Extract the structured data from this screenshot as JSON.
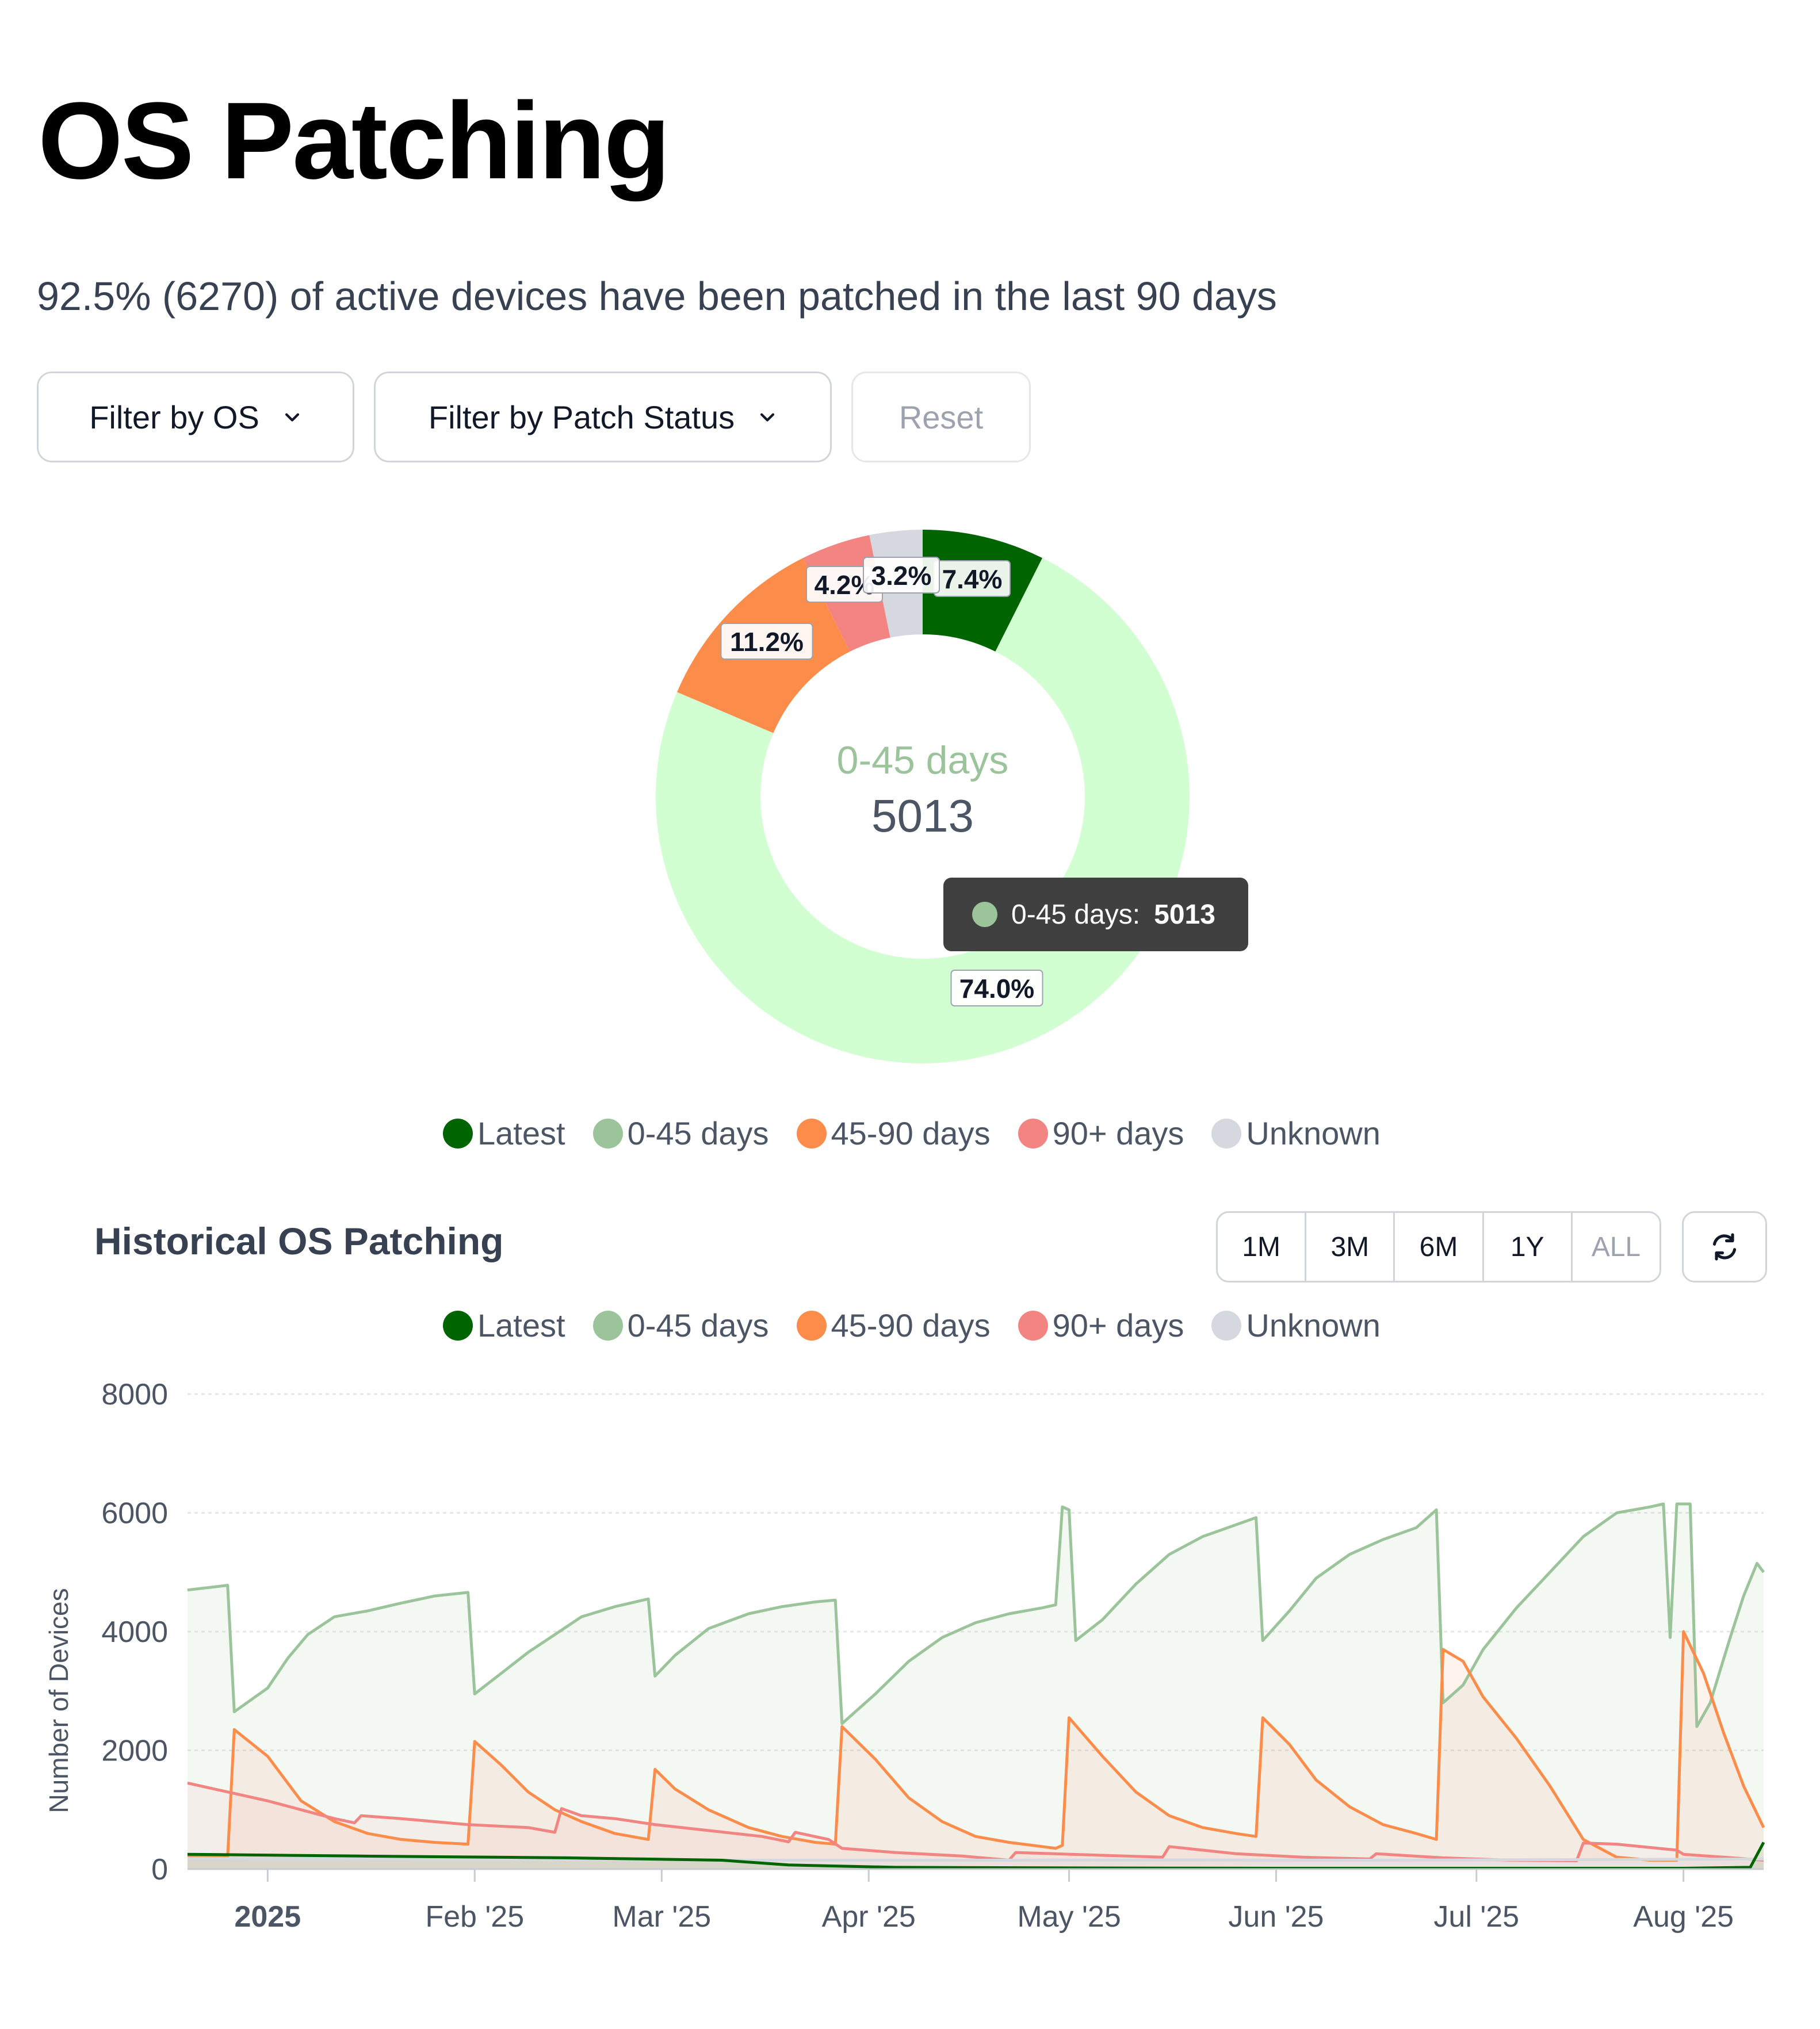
{
  "page": {
    "title": "OS Patching",
    "summary": "92.5% (6270) of active devices have been patched in the last 90 days"
  },
  "filters": {
    "os_label": "Filter by OS",
    "status_label": "Filter by Patch Status",
    "reset_label": "Reset"
  },
  "icons": {
    "dropdown": "chevron-down-icon",
    "refresh": "refresh-icon"
  },
  "colors": {
    "latest": "#006400",
    "days_0_45": "#9bc49b",
    "days_0_45_slice": "#d2ffd2",
    "days_45_90": "#fb8c4a",
    "days_90_plus": "#f28482",
    "unknown": "#d5d8de"
  },
  "legend": [
    {
      "key": "latest",
      "label": "Latest"
    },
    {
      "key": "days_0_45",
      "label": "0-45 days"
    },
    {
      "key": "days_45_90",
      "label": "45-90 days"
    },
    {
      "key": "days_90_plus",
      "label": "90+ days"
    },
    {
      "key": "unknown",
      "label": "Unknown"
    }
  ],
  "donut": {
    "center_label": "0-45 days",
    "center_value": "5013",
    "tooltip": {
      "label": "0-45 days:",
      "value": "5013"
    }
  },
  "history": {
    "title": "Historical OS Patching",
    "ranges": [
      "1M",
      "3M",
      "6M",
      "1Y",
      "ALL"
    ],
    "active_range": "ALL"
  },
  "chart_data": [
    {
      "type": "pie",
      "variant": "donut",
      "slices": [
        {
          "label": "Latest",
          "percent": 7.4,
          "label_text": "7.4%"
        },
        {
          "label": "0-45 days",
          "percent": 74.0,
          "value": 5013,
          "label_text": "74.0%"
        },
        {
          "label": "45-90 days",
          "percent": 11.2,
          "label_text": "11.2%"
        },
        {
          "label": "90+ days",
          "percent": 4.2,
          "label_text": "4.2%"
        },
        {
          "label": "Unknown",
          "percent": 3.2,
          "label_text": "3.2%"
        }
      ]
    },
    {
      "type": "area",
      "ylabel": "Number of Devices",
      "ylim": [
        0,
        8000
      ],
      "yticks": [
        0,
        2000,
        4000,
        6000,
        8000
      ],
      "xlim": [
        "2024-12-20",
        "2025-08-13"
      ],
      "xticks": [
        {
          "date": "2025-01-01",
          "label": "2025",
          "bold": true
        },
        {
          "date": "2025-02-01",
          "label": "Feb '25"
        },
        {
          "date": "2025-03-01",
          "label": "Mar '25"
        },
        {
          "date": "2025-04-01",
          "label": "Apr '25"
        },
        {
          "date": "2025-05-01",
          "label": "May '25"
        },
        {
          "date": "2025-06-01",
          "label": "Jun '25"
        },
        {
          "date": "2025-07-01",
          "label": "Jul '25"
        },
        {
          "date": "2025-08-01",
          "label": "Aug '25"
        }
      ],
      "grid": true,
      "legend_position": "top",
      "series": [
        {
          "key": "days_0_45",
          "name": "0-45 days",
          "points": [
            [
              "2024-12-20",
              4700
            ],
            [
              "2024-12-26",
              4780
            ],
            [
              "2024-12-27",
              2650
            ],
            [
              "2025-01-01",
              3050
            ],
            [
              "2025-01-04",
              3550
            ],
            [
              "2025-01-07",
              3950
            ],
            [
              "2025-01-11",
              4250
            ],
            [
              "2025-01-16",
              4350
            ],
            [
              "2025-01-21",
              4480
            ],
            [
              "2025-01-26",
              4600
            ],
            [
              "2025-01-31",
              4660
            ],
            [
              "2025-02-01",
              2950
            ],
            [
              "2025-02-05",
              3300
            ],
            [
              "2025-02-09",
              3650
            ],
            [
              "2025-02-13",
              3950
            ],
            [
              "2025-02-17",
              4250
            ],
            [
              "2025-02-22",
              4420
            ],
            [
              "2025-02-27",
              4550
            ],
            [
              "2025-02-28",
              3250
            ],
            [
              "2025-03-03",
              3600
            ],
            [
              "2025-03-08",
              4050
            ],
            [
              "2025-03-14",
              4300
            ],
            [
              "2025-03-19",
              4420
            ],
            [
              "2025-03-24",
              4500
            ],
            [
              "2025-03-27",
              4530
            ],
            [
              "2025-03-28",
              2450
            ],
            [
              "2025-04-02",
              2950
            ],
            [
              "2025-04-07",
              3500
            ],
            [
              "2025-04-12",
              3900
            ],
            [
              "2025-04-17",
              4150
            ],
            [
              "2025-04-22",
              4300
            ],
            [
              "2025-04-27",
              4400
            ],
            [
              "2025-04-29",
              4450
            ],
            [
              "2025-04-30",
              6100
            ],
            [
              "2025-05-01",
              6050
            ],
            [
              "2025-05-02",
              3850
            ],
            [
              "2025-05-06",
              4200
            ],
            [
              "2025-05-11",
              4800
            ],
            [
              "2025-05-16",
              5300
            ],
            [
              "2025-05-21",
              5600
            ],
            [
              "2025-05-26",
              5800
            ],
            [
              "2025-05-29",
              5920
            ],
            [
              "2025-05-30",
              3850
            ],
            [
              "2025-06-03",
              4350
            ],
            [
              "2025-06-07",
              4900
            ],
            [
              "2025-06-12",
              5300
            ],
            [
              "2025-06-17",
              5550
            ],
            [
              "2025-06-22",
              5750
            ],
            [
              "2025-06-25",
              6050
            ],
            [
              "2025-06-26",
              2800
            ],
            [
              "2025-06-29",
              3100
            ],
            [
              "2025-07-02",
              3700
            ],
            [
              "2025-07-07",
              4400
            ],
            [
              "2025-07-12",
              5000
            ],
            [
              "2025-07-17",
              5600
            ],
            [
              "2025-07-22",
              6000
            ],
            [
              "2025-07-27",
              6100
            ],
            [
              "2025-07-29",
              6150
            ],
            [
              "2025-07-30",
              3900
            ],
            [
              "2025-07-31",
              6150
            ],
            [
              "2025-08-02",
              6150
            ],
            [
              "2025-08-03",
              2400
            ],
            [
              "2025-08-05",
              2800
            ],
            [
              "2025-08-08",
              3900
            ],
            [
              "2025-08-10",
              4600
            ],
            [
              "2025-08-12",
              5150
            ],
            [
              "2025-08-13",
              5000
            ]
          ]
        },
        {
          "key": "days_45_90",
          "name": "45-90 days",
          "points": [
            [
              "2024-12-20",
              200
            ],
            [
              "2024-12-26",
              200
            ],
            [
              "2024-12-27",
              2350
            ],
            [
              "2025-01-01",
              1900
            ],
            [
              "2025-01-06",
              1150
            ],
            [
              "2025-01-11",
              800
            ],
            [
              "2025-01-16",
              600
            ],
            [
              "2025-01-21",
              500
            ],
            [
              "2025-01-26",
              450
            ],
            [
              "2025-01-31",
              420
            ],
            [
              "2025-02-01",
              2150
            ],
            [
              "2025-02-05",
              1750
            ],
            [
              "2025-02-09",
              1300
            ],
            [
              "2025-02-13",
              1000
            ],
            [
              "2025-02-17",
              800
            ],
            [
              "2025-02-22",
              600
            ],
            [
              "2025-02-27",
              500
            ],
            [
              "2025-02-28",
              1680
            ],
            [
              "2025-03-03",
              1350
            ],
            [
              "2025-03-08",
              1000
            ],
            [
              "2025-03-14",
              700
            ],
            [
              "2025-03-19",
              550
            ],
            [
              "2025-03-24",
              450
            ],
            [
              "2025-03-27",
              420
            ],
            [
              "2025-03-28",
              2400
            ],
            [
              "2025-04-02",
              1850
            ],
            [
              "2025-04-07",
              1200
            ],
            [
              "2025-04-12",
              800
            ],
            [
              "2025-04-17",
              550
            ],
            [
              "2025-04-22",
              450
            ],
            [
              "2025-04-27",
              380
            ],
            [
              "2025-04-29",
              350
            ],
            [
              "2025-04-30",
              400
            ],
            [
              "2025-05-01",
              2550
            ],
            [
              "2025-05-06",
              1900
            ],
            [
              "2025-05-11",
              1300
            ],
            [
              "2025-05-16",
              900
            ],
            [
              "2025-05-21",
              700
            ],
            [
              "2025-05-26",
              600
            ],
            [
              "2025-05-29",
              550
            ],
            [
              "2025-05-30",
              2550
            ],
            [
              "2025-06-03",
              2100
            ],
            [
              "2025-06-07",
              1500
            ],
            [
              "2025-06-12",
              1050
            ],
            [
              "2025-06-17",
              750
            ],
            [
              "2025-06-22",
              600
            ],
            [
              "2025-06-25",
              500
            ],
            [
              "2025-06-26",
              3700
            ],
            [
              "2025-06-29",
              3500
            ],
            [
              "2025-07-02",
              2900
            ],
            [
              "2025-07-07",
              2200
            ],
            [
              "2025-07-12",
              1400
            ],
            [
              "2025-07-17",
              500
            ],
            [
              "2025-07-22",
              200
            ],
            [
              "2025-07-27",
              150
            ],
            [
              "2025-07-31",
              150
            ],
            [
              "2025-08-01",
              4000
            ],
            [
              "2025-08-04",
              3300
            ],
            [
              "2025-08-07",
              2300
            ],
            [
              "2025-08-10",
              1400
            ],
            [
              "2025-08-13",
              700
            ]
          ]
        },
        {
          "key": "days_90_plus",
          "name": "90+ days",
          "points": [
            [
              "2024-12-20",
              1450
            ],
            [
              "2024-12-26",
              1300
            ],
            [
              "2025-01-01",
              1150
            ],
            [
              "2025-01-06",
              1000
            ],
            [
              "2025-01-11",
              850
            ],
            [
              "2025-01-14",
              780
            ],
            [
              "2025-01-15",
              900
            ],
            [
              "2025-01-21",
              850
            ],
            [
              "2025-01-31",
              750
            ],
            [
              "2025-02-09",
              700
            ],
            [
              "2025-02-13",
              620
            ],
            [
              "2025-02-14",
              1020
            ],
            [
              "2025-02-17",
              900
            ],
            [
              "2025-02-22",
              850
            ],
            [
              "2025-02-28",
              750
            ],
            [
              "2025-03-08",
              650
            ],
            [
              "2025-03-16",
              550
            ],
            [
              "2025-03-20",
              460
            ],
            [
              "2025-03-21",
              620
            ],
            [
              "2025-03-26",
              500
            ],
            [
              "2025-03-28",
              350
            ],
            [
              "2025-04-05",
              280
            ],
            [
              "2025-04-15",
              220
            ],
            [
              "2025-04-22",
              150
            ],
            [
              "2025-04-23",
              280
            ],
            [
              "2025-05-15",
              200
            ],
            [
              "2025-05-16",
              380
            ],
            [
              "2025-05-21",
              320
            ],
            [
              "2025-05-26",
              260
            ],
            [
              "2025-06-05",
              200
            ],
            [
              "2025-06-15",
              170
            ],
            [
              "2025-06-16",
              260
            ],
            [
              "2025-06-26",
              190
            ],
            [
              "2025-07-06",
              150
            ],
            [
              "2025-07-16",
              140
            ],
            [
              "2025-07-17",
              440
            ],
            [
              "2025-07-22",
              420
            ],
            [
              "2025-07-31",
              320
            ],
            [
              "2025-08-01",
              250
            ],
            [
              "2025-08-07",
              200
            ],
            [
              "2025-08-13",
              150
            ]
          ]
        },
        {
          "key": "unknown",
          "name": "Unknown",
          "points": [
            [
              "2024-12-20",
              180
            ],
            [
              "2025-01-15",
              170
            ],
            [
              "2025-02-15",
              160
            ],
            [
              "2025-03-15",
              150
            ],
            [
              "2025-04-15",
              150
            ],
            [
              "2025-05-15",
              155
            ],
            [
              "2025-06-15",
              150
            ],
            [
              "2025-07-15",
              160
            ],
            [
              "2025-08-13",
              170
            ]
          ]
        },
        {
          "key": "latest",
          "name": "Latest",
          "points": [
            [
              "2024-12-20",
              250
            ],
            [
              "2025-01-15",
              220
            ],
            [
              "2025-02-15",
              190
            ],
            [
              "2025-03-10",
              150
            ],
            [
              "2025-03-20",
              70
            ],
            [
              "2025-04-05",
              30
            ],
            [
              "2025-05-01",
              20
            ],
            [
              "2025-06-01",
              15
            ],
            [
              "2025-07-01",
              15
            ],
            [
              "2025-08-01",
              15
            ],
            [
              "2025-08-11",
              30
            ],
            [
              "2025-08-13",
              450
            ]
          ]
        }
      ]
    }
  ]
}
